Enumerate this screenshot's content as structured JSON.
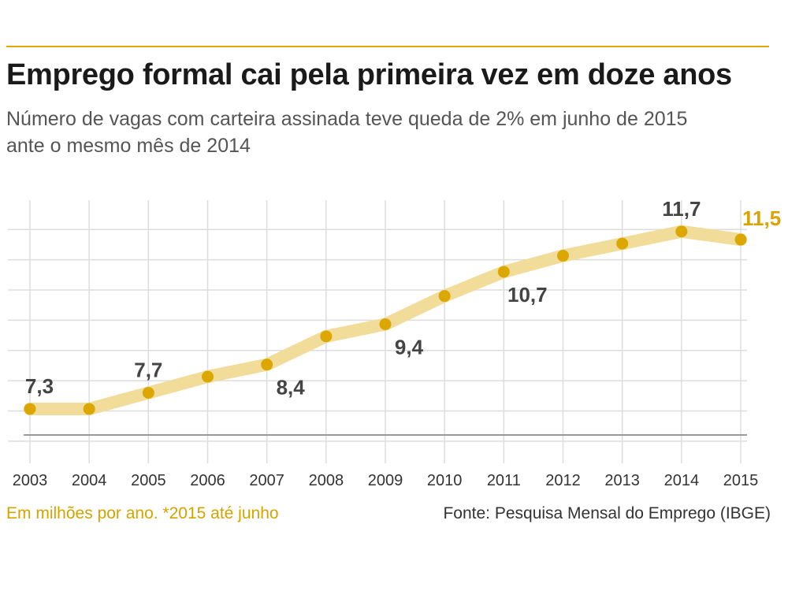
{
  "title": "Emprego formal cai pela primeira vez em doze anos",
  "subtitle": "Número de vagas com carteira assinada teve queda de 2% em junho de 2015 ante o mesmo mês de 2014",
  "note": "Em milhões por ano. *2015 até junho",
  "source": "Fonte: Pesquisa Mensal do Emprego (IBGE)",
  "colors": {
    "accent": "#e0a800",
    "line": "#f2dc9a",
    "point": "#dba700",
    "label": "#444444",
    "highlight": "#d9a400",
    "grid": "#dddddd"
  },
  "chart_data": {
    "type": "line",
    "title": "Emprego formal cai pela primeira vez em doze anos",
    "xlabel": "",
    "ylabel": "",
    "categories": [
      "2003",
      "2004",
      "2005",
      "2006",
      "2007",
      "2008",
      "2009",
      "2010",
      "2011",
      "2012",
      "2013",
      "2014",
      "2015"
    ],
    "values": [
      7.3,
      7.3,
      7.7,
      8.1,
      8.4,
      9.1,
      9.4,
      10.1,
      10.7,
      11.1,
      11.4,
      11.7,
      11.5
    ],
    "labels": [
      {
        "index": 0,
        "text": "7,3",
        "pos": "above"
      },
      {
        "index": 2,
        "text": "7,7",
        "pos": "above"
      },
      {
        "index": 4,
        "text": "8,4",
        "pos": "below"
      },
      {
        "index": 6,
        "text": "9,4",
        "pos": "below"
      },
      {
        "index": 8,
        "text": "10,7",
        "pos": "below"
      },
      {
        "index": 11,
        "text": "11,7",
        "pos": "above"
      },
      {
        "index": 12,
        "text": "11,5",
        "pos": "right",
        "highlight": true
      }
    ],
    "ylim": [
      6.4,
      12.4
    ],
    "yticks": [
      6.5,
      7.25,
      8.0,
      8.75,
      9.5,
      10.25,
      11.0,
      11.75
    ],
    "grid": true
  }
}
